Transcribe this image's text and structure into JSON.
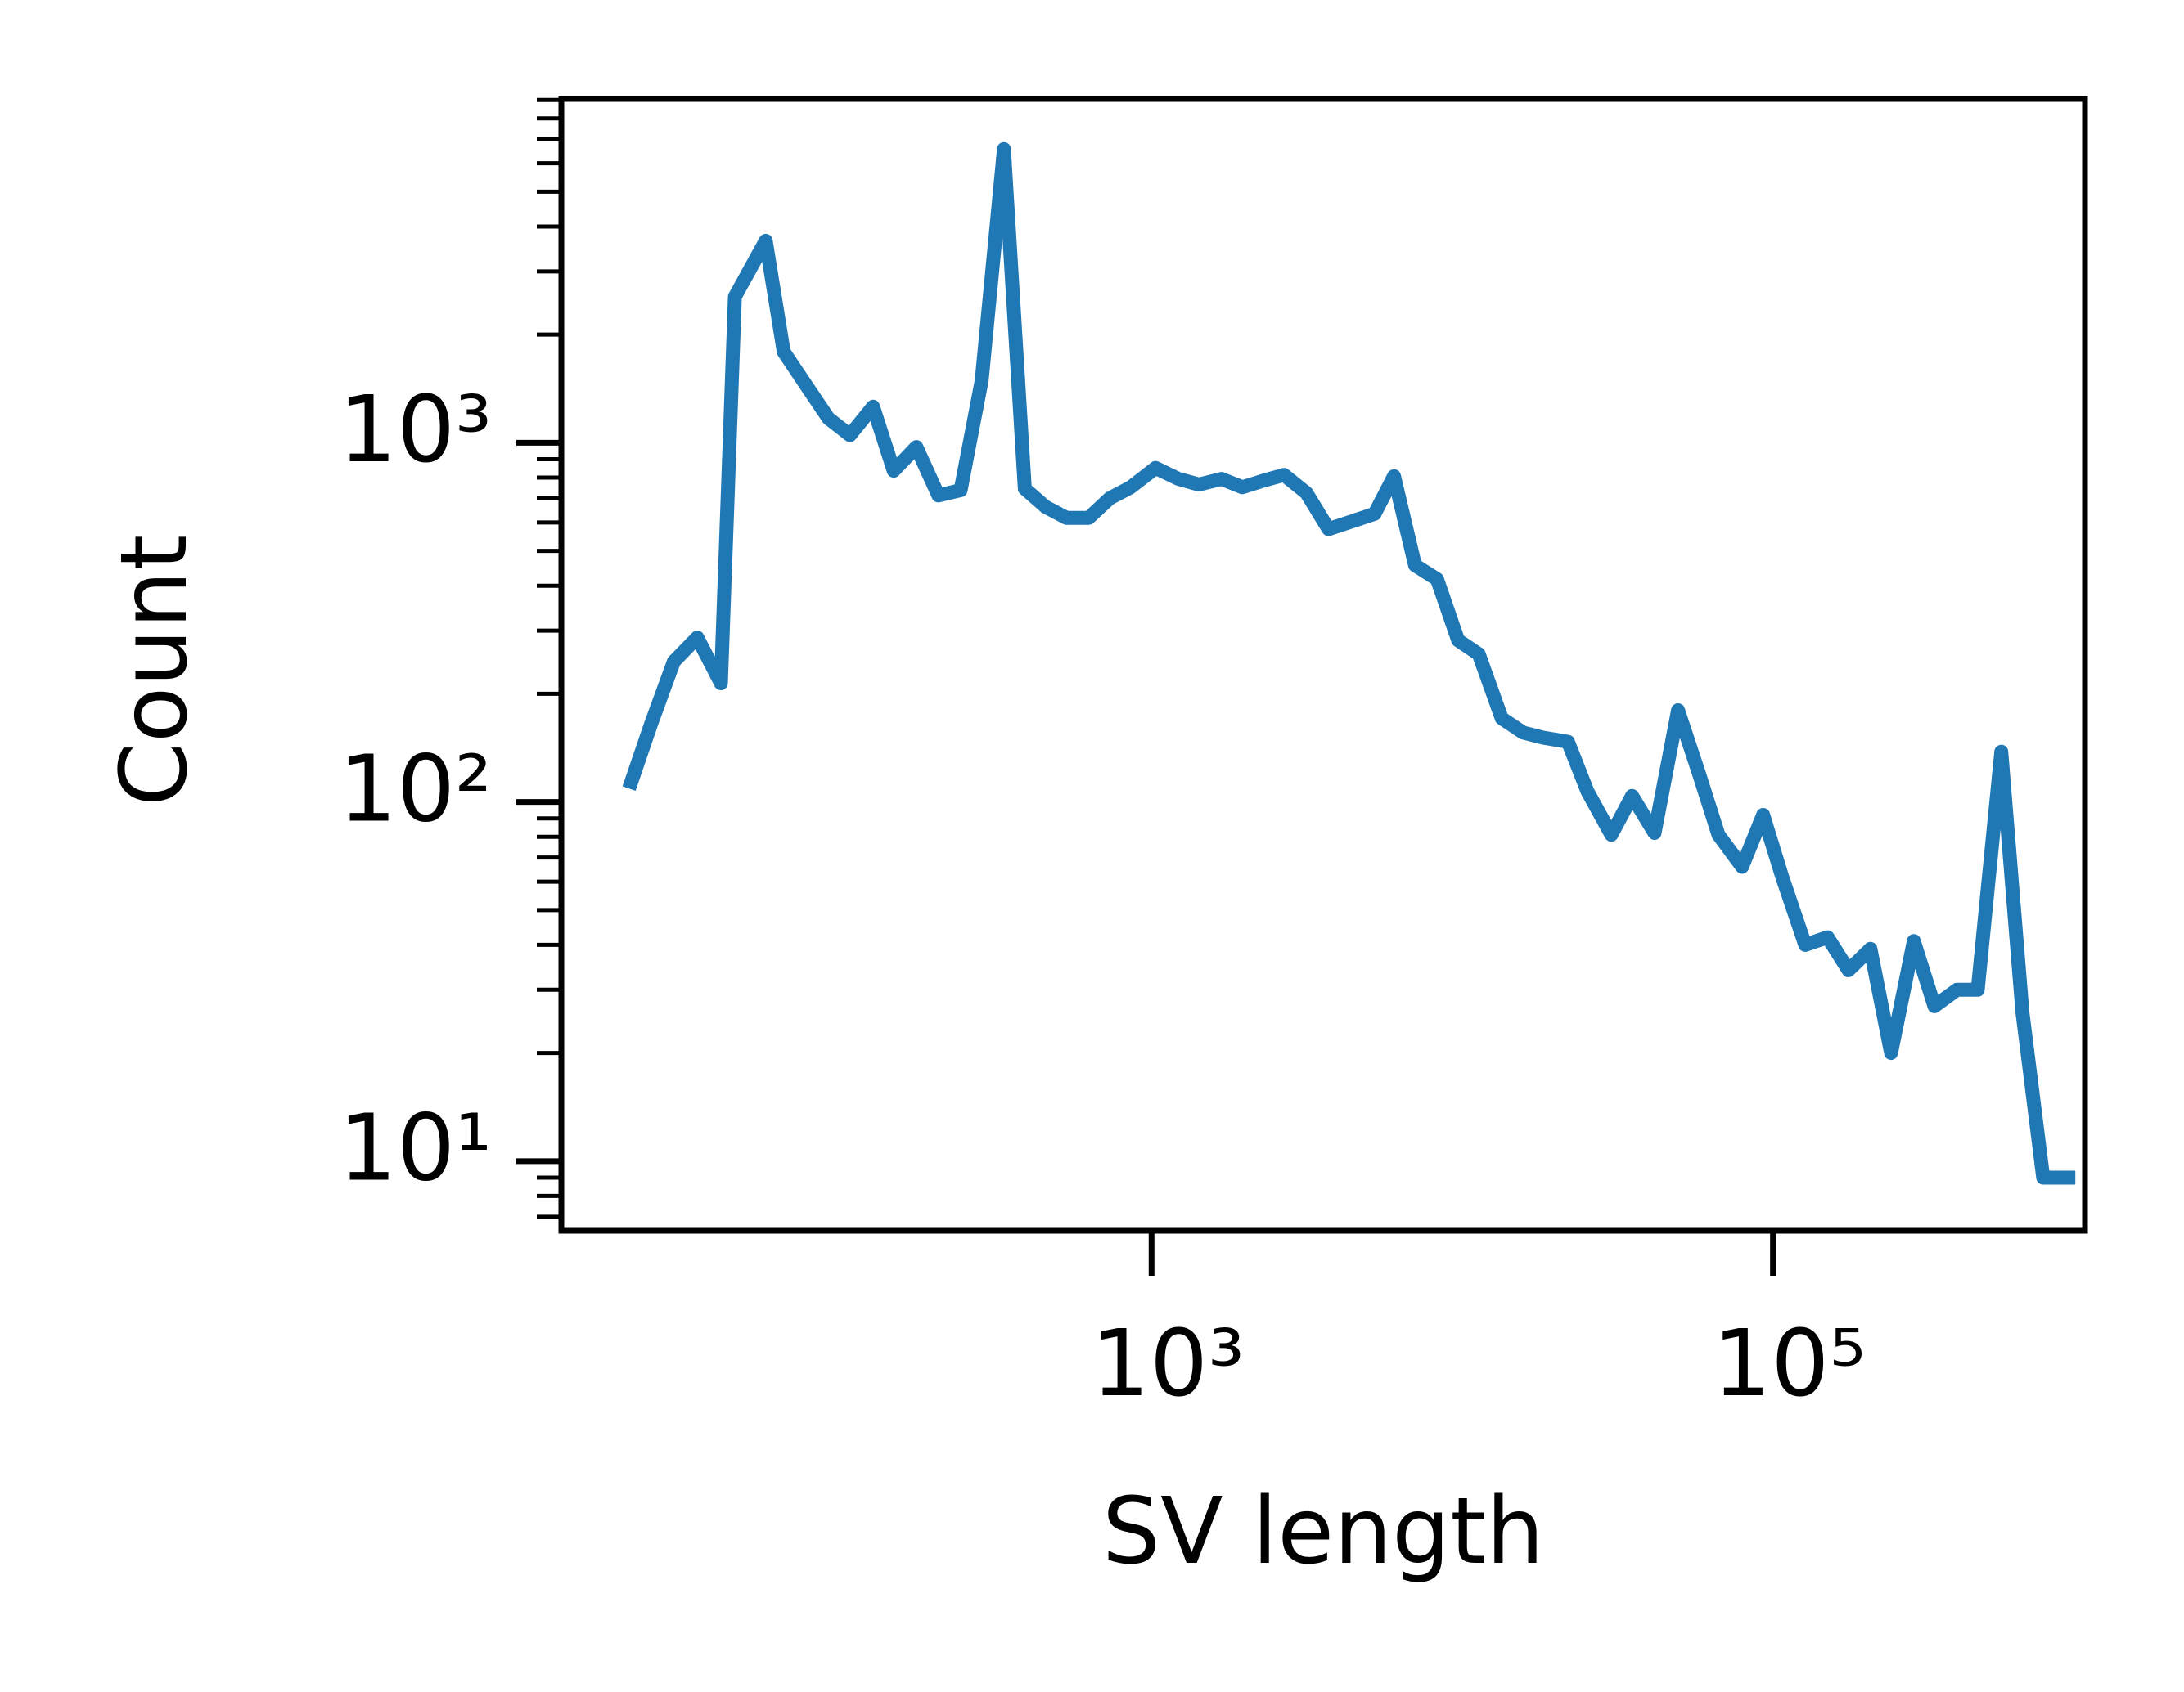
{
  "chart_data": {
    "type": "line",
    "x_label": "SV length",
    "y_label": "Count",
    "xscale": "log",
    "yscale": "log",
    "xlim": [
      12.6,
      1010000
    ],
    "ylim": [
      6.4,
      9060
    ],
    "xticks": [
      {
        "value": 1000,
        "label": "10³"
      },
      {
        "value": 100000,
        "label": "10⁵"
      }
    ],
    "yticks": [
      {
        "value": 10,
        "label": "10¹"
      },
      {
        "value": 100,
        "label": "10²"
      },
      {
        "value": 1000,
        "label": "10³"
      }
    ],
    "yminor_ticks": [
      7,
      8,
      9,
      20,
      30,
      40,
      50,
      60,
      70,
      80,
      90,
      200,
      300,
      400,
      500,
      600,
      700,
      800,
      900,
      2000,
      3000,
      4000,
      5000,
      6000,
      7000,
      8000,
      9000
    ],
    "series": [
      {
        "color": "#1f77b4",
        "x": [
          20.8,
          24.5,
          29.0,
          34.5,
          41.1,
          45.6,
          57.3,
          65.5,
          78.0,
          91.2,
          107,
          127,
          148,
          175,
          206,
          243,
          284,
          335,
          391,
          456,
          532,
          628,
          733,
          857,
          1030,
          1220,
          1420,
          1680,
          1960,
          2310,
          2670,
          3150,
          3710,
          5220,
          6030,
          7050,
          8300,
          9700,
          11300,
          13400,
          15700,
          18200,
          21900,
          25300,
          30200,
          35200,
          41600,
          49500,
          57800,
          66800,
          79600,
          93000,
          107000,
          127000,
          150000,
          175000,
          206000,
          240000,
          284000,
          331000,
          391000,
          456000,
          543000,
          635000,
          741000,
          940000
        ],
        "values": [
          109,
          165,
          246,
          287,
          214,
          2550,
          3650,
          1790,
          1430,
          1170,
          1050,
          1260,
          836,
          973,
          713,
          738,
          1490,
          6570,
          745,
          663,
          618,
          618,
          700,
          752,
          851,
          793,
          765,
          793,
          752,
          786,
          814,
          725,
          575,
          634,
          807,
          456,
          417,
          282,
          258,
          171,
          156,
          151,
          147,
          107,
          81,
          104,
          82,
          180,
          120,
          81,
          66,
          92,
          62,
          40,
          42,
          34,
          39,
          20,
          41,
          27,
          30,
          30,
          138,
          26,
          9,
          9
        ]
      }
    ]
  }
}
